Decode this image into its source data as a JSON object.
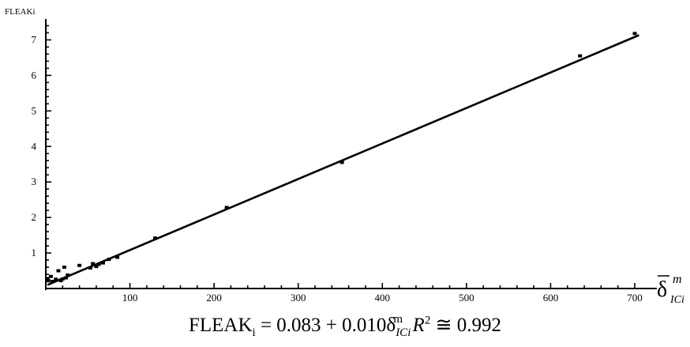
{
  "chart_data": {
    "type": "scatter",
    "ylabel": "FLEAKi",
    "xlabel": {
      "main": "δ",
      "sup": "m",
      "sub": "ICi"
    },
    "xlim": [
      0,
      715
    ],
    "ylim": [
      0,
      7.5
    ],
    "x_ticks": [
      100,
      200,
      300,
      400,
      500,
      600,
      700
    ],
    "y_ticks": [
      1,
      2,
      3,
      4,
      5,
      6,
      7
    ],
    "points": [
      {
        "x": 2,
        "y": 0.28
      },
      {
        "x": 3,
        "y": 0.22
      },
      {
        "x": 6,
        "y": 0.34
      },
      {
        "x": 8,
        "y": 0.2
      },
      {
        "x": 12,
        "y": 0.26
      },
      {
        "x": 15,
        "y": 0.5
      },
      {
        "x": 18,
        "y": 0.22
      },
      {
        "x": 20,
        "y": 0.27
      },
      {
        "x": 22,
        "y": 0.6
      },
      {
        "x": 24,
        "y": 0.3
      },
      {
        "x": 26,
        "y": 0.38
      },
      {
        "x": 40,
        "y": 0.65
      },
      {
        "x": 53,
        "y": 0.58
      },
      {
        "x": 56,
        "y": 0.7
      },
      {
        "x": 60,
        "y": 0.62
      },
      {
        "x": 63,
        "y": 0.68
      },
      {
        "x": 68,
        "y": 0.72
      },
      {
        "x": 75,
        "y": 0.82
      },
      {
        "x": 85,
        "y": 0.88
      },
      {
        "x": 130,
        "y": 1.42
      },
      {
        "x": 215,
        "y": 2.28
      },
      {
        "x": 352,
        "y": 3.55
      },
      {
        "x": 635,
        "y": 6.55
      },
      {
        "x": 700,
        "y": 7.18
      }
    ],
    "fit": {
      "intercept": 0.083,
      "slope": 0.01,
      "x_range": [
        2,
        705
      ]
    },
    "equation": {
      "lhs": "FLEAK",
      "lhs_sub": "i",
      "rhs": "= 0.083 + 0.010δ",
      "rhs_sup": "m",
      "rhs_sub": "ICi",
      "r2_label": "R",
      "r2_rest": "≅ 0.992"
    }
  }
}
